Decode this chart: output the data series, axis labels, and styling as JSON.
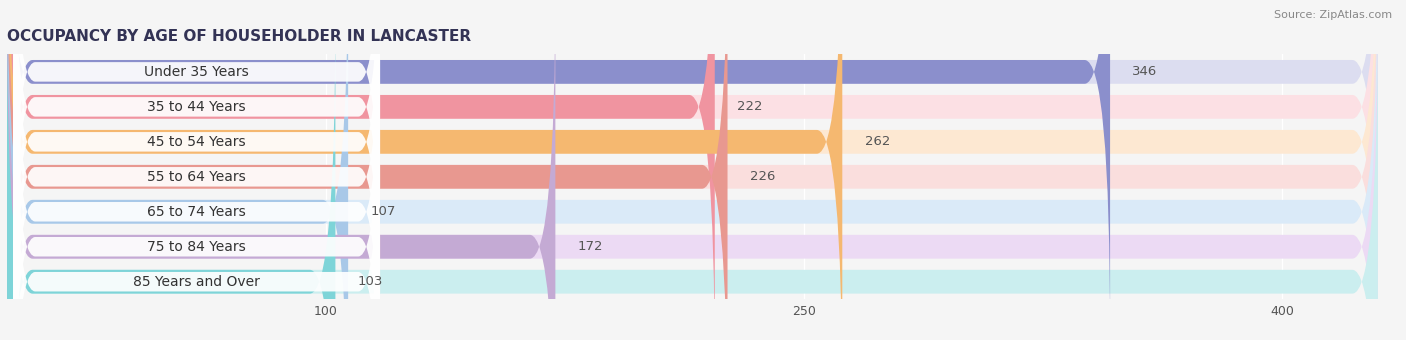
{
  "title": "OCCUPANCY BY AGE OF HOUSEHOLDER IN LANCASTER",
  "source": "Source: ZipAtlas.com",
  "categories": [
    "Under 35 Years",
    "35 to 44 Years",
    "45 to 54 Years",
    "55 to 64 Years",
    "65 to 74 Years",
    "75 to 84 Years",
    "85 Years and Over"
  ],
  "values": [
    346,
    222,
    262,
    226,
    107,
    172,
    103
  ],
  "bar_colors": [
    "#8b8fcc",
    "#f094a0",
    "#f5b870",
    "#e89890",
    "#a8c8e8",
    "#c4aad4",
    "#7ed4d8"
  ],
  "bg_colors": [
    "#dcddf0",
    "#fce0e4",
    "#fde8d2",
    "#fadedd",
    "#daeaf8",
    "#ecdaf4",
    "#cbeeef"
  ],
  "xlim_data": 430,
  "xticks": [
    100,
    250,
    400
  ],
  "title_fontsize": 11,
  "label_fontsize": 10,
  "value_fontsize": 9.5,
  "background_color": "#f5f5f5",
  "pill_color": "#ffffff"
}
